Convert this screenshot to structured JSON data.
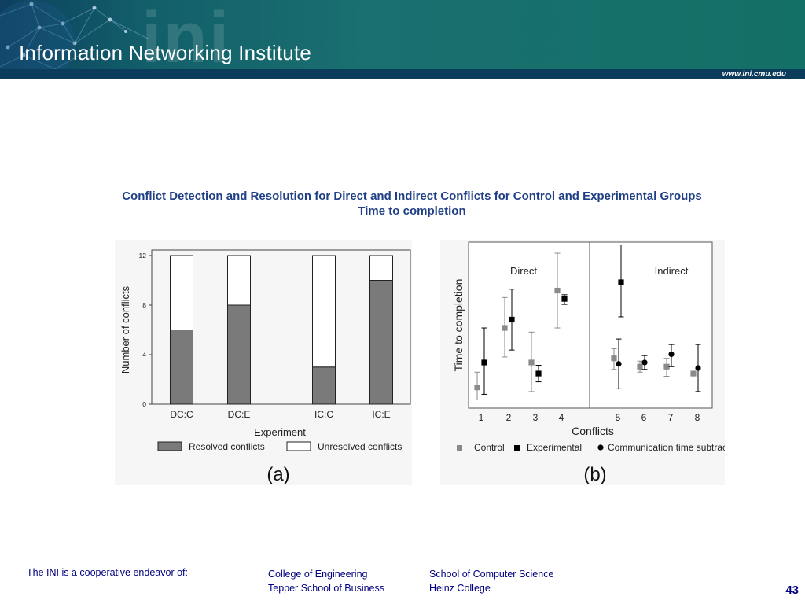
{
  "header": {
    "logo_text": "ini",
    "institute": "Information Networking Institute",
    "url": "www.ini.cmu.edu"
  },
  "slide": {
    "title_line1": "Conflict Detection and Resolution for Direct and Indirect Conflicts for Control and Experimental Groups",
    "title_line2": "Time to completion"
  },
  "chart_data": [
    {
      "type": "bar",
      "panel_label": "(a)",
      "categories": [
        "DC:C",
        "DC:E",
        "IC:C",
        "IC:E"
      ],
      "series": [
        {
          "name": "Resolved conflicts",
          "values": [
            6,
            8,
            3,
            10
          ]
        },
        {
          "name": "Unresolved conflicts",
          "values": [
            6,
            4,
            9,
            2
          ]
        }
      ],
      "stacked": true,
      "xlabel": "Experiment",
      "ylabel": "Number of conflicts",
      "ylim": [
        0,
        12
      ],
      "yticks": [
        0,
        4,
        8,
        12
      ],
      "legend_position": "bottom",
      "colors": {
        "resolved": "#7a7a7a",
        "unresolved": "#ffffff"
      }
    },
    {
      "type": "scatter",
      "panel_label": "(b)",
      "xlabel": "Conflicts",
      "ylabel": "Time to completion",
      "x_ticks": [
        "1",
        "2",
        "3",
        "4",
        "5",
        "6",
        "7",
        "8"
      ],
      "groups": [
        "Direct",
        "Indirect"
      ],
      "legend_position": "bottom",
      "series": [
        {
          "name": "Control",
          "marker": "square",
          "color": "#8a8a8a",
          "points": [
            {
              "x": "1",
              "y": 1.5,
              "low": 0.6,
              "high": 2.6
            },
            {
              "x": "2",
              "y": 5.8,
              "low": 3.7,
              "high": 8.0
            },
            {
              "x": "3",
              "y": 3.3,
              "low": 1.2,
              "high": 5.5
            },
            {
              "x": "4",
              "y": 8.5,
              "low": 5.8,
              "high": 11.2
            },
            {
              "x": "5",
              "y": 3.6,
              "low": 2.8,
              "high": 4.3
            },
            {
              "x": "6",
              "y": 3.0,
              "low": 2.6,
              "high": 3.4
            },
            {
              "x": "7",
              "y": 3.0,
              "low": 2.3,
              "high": 3.6
            },
            {
              "x": "8",
              "y": 2.5,
              "low": 2.4,
              "high": 2.6
            }
          ]
        },
        {
          "name": "Experimental",
          "marker": "square",
          "color": "#000000",
          "points": [
            {
              "x": "1",
              "y": 3.3,
              "low": 1.0,
              "high": 5.8
            },
            {
              "x": "2",
              "y": 6.4,
              "low": 4.2,
              "high": 8.6
            },
            {
              "x": "3",
              "y": 2.5,
              "low": 1.9,
              "high": 3.1
            },
            {
              "x": "4",
              "y": 7.9,
              "low": 7.5,
              "high": 8.2
            },
            {
              "x": "5",
              "y": 9.1,
              "low": 6.6,
              "high": 11.8
            }
          ]
        },
        {
          "name": "Communication time subtracted",
          "marker": "circle",
          "color": "#000000",
          "points": [
            {
              "x": "5",
              "y": 3.2,
              "low": 1.4,
              "high": 5.0
            },
            {
              "x": "6",
              "y": 3.3,
              "low": 2.8,
              "high": 3.8
            },
            {
              "x": "7",
              "y": 3.9,
              "low": 3.0,
              "high": 4.6
            },
            {
              "x": "8",
              "y": 2.9,
              "low": 1.2,
              "high": 4.6
            }
          ]
        }
      ],
      "ylim": [
        0,
        12
      ]
    }
  ],
  "footer": {
    "lead": "The INI is a cooperative endeavor of:",
    "col1": [
      "College of Engineering",
      "Tepper School of Business"
    ],
    "col2": [
      "School of Computer Science",
      "Heinz College"
    ],
    "page_number": "43"
  }
}
